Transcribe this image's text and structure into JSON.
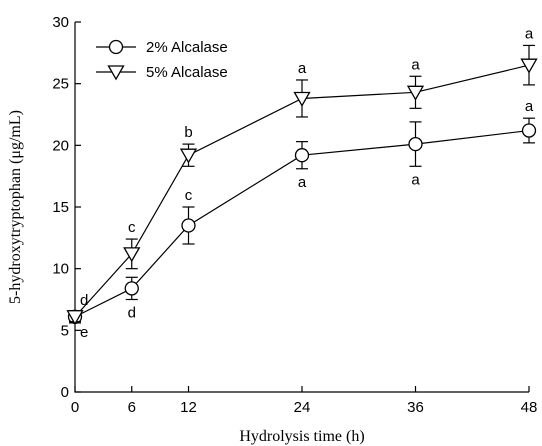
{
  "chart_data": {
    "type": "line",
    "xlabel": "Hydrolysis time (h)",
    "ylabel": "5-hydroxytryptophan (μg/mL)",
    "xlim": [
      0,
      48
    ],
    "ylim": [
      0,
      30
    ],
    "x_ticks": [
      "0",
      "6",
      "12",
      "24",
      "36",
      "48"
    ],
    "y_ticks": [
      "0",
      "5",
      "10",
      "15",
      "20",
      "25",
      "30"
    ],
    "grid": false,
    "legend_position": "top-left",
    "x": [
      0,
      6,
      12,
      24,
      36,
      48
    ],
    "series": [
      {
        "name": "2% Alcalase",
        "marker": "circle",
        "values": [
          6.1,
          8.4,
          13.5,
          19.2,
          20.1,
          21.2
        ],
        "errors": [
          0.5,
          0.9,
          1.5,
          1.1,
          1.8,
          1.0
        ],
        "labels": [
          "e",
          "d",
          "c",
          "a",
          "a",
          "a"
        ],
        "label_side": [
          "below",
          "below",
          "above",
          "below",
          "below",
          "above"
        ]
      },
      {
        "name": "5% Alcalase",
        "marker": "triangle-down",
        "values": [
          6.1,
          11.2,
          19.2,
          23.8,
          24.3,
          26.5
        ],
        "errors": [
          0.4,
          1.2,
          0.9,
          1.5,
          1.3,
          1.6
        ],
        "labels": [
          "d",
          "c",
          "b",
          "a",
          "a",
          "a"
        ],
        "label_side": [
          "above",
          "above",
          "above",
          "above",
          "above",
          "above"
        ]
      }
    ]
  }
}
